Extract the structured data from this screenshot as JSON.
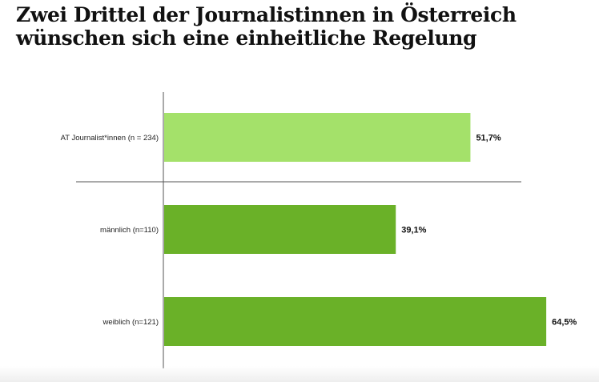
{
  "title": {
    "line1": "Zwei Drittel der Journalistinnen in Österreich",
    "line2": "wünschen sich eine einheitliche Regelung"
  },
  "chart_data": {
    "type": "bar",
    "orientation": "horizontal",
    "categories": [
      "AT Journalist*innen (n = 234)",
      "männlich (n=110)",
      "weiblich (n=121)"
    ],
    "values": [
      51.7,
      39.1,
      64.5
    ],
    "value_labels": [
      "51,7%",
      "39,1%",
      "64,5%"
    ],
    "colors": [
      "#a4e16a",
      "#6ab128",
      "#6ab128"
    ],
    "xlim": [
      0,
      73
    ],
    "grid": false,
    "legend": "none",
    "title": "Zwei Drittel der Journalistinnen in Österreich wünschen sich eine einheitliche Regelung"
  }
}
